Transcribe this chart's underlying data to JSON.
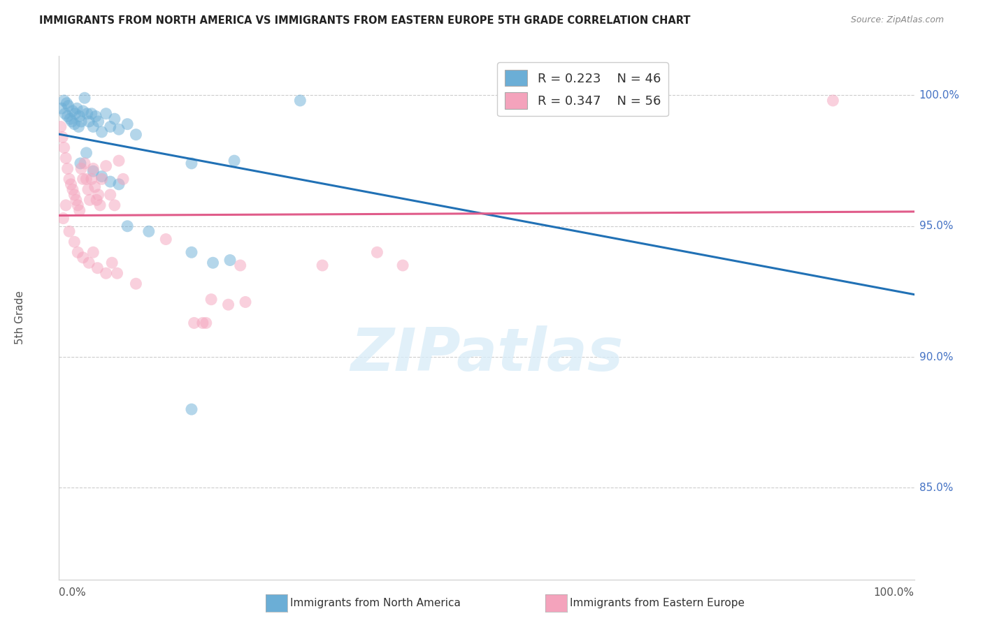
{
  "title": "IMMIGRANTS FROM NORTH AMERICA VS IMMIGRANTS FROM EASTERN EUROPE 5TH GRADE CORRELATION CHART",
  "source": "Source: ZipAtlas.com",
  "ylabel": "5th Grade",
  "ytick_values": [
    0.85,
    0.9,
    0.95,
    1.0
  ],
  "ytick_labels": [
    "85.0%",
    "90.0%",
    "95.0%",
    "100.0%"
  ],
  "xmin": 0.0,
  "xmax": 1.0,
  "ymin": 0.815,
  "ymax": 1.015,
  "legend_blue_r": "R = 0.223",
  "legend_blue_n": "N = 46",
  "legend_pink_r": "R = 0.347",
  "legend_pink_n": "N = 56",
  "watermark_text": "ZIPatlas",
  "blue_color": "#6baed6",
  "pink_color": "#f4a3bc",
  "blue_line_color": "#2171b5",
  "pink_line_color": "#e05c8a",
  "legend_label_blue": "Immigrants from North America",
  "legend_label_pink": "Immigrants from Eastern Europe",
  "blue_scatter_x": [
    0.003,
    0.006,
    0.007,
    0.009,
    0.01,
    0.011,
    0.013,
    0.015,
    0.016,
    0.018,
    0.019,
    0.021,
    0.023,
    0.024,
    0.026,
    0.028,
    0.03,
    0.033,
    0.035,
    0.038,
    0.04,
    0.043,
    0.046,
    0.05,
    0.055,
    0.06,
    0.065,
    0.07,
    0.08,
    0.09,
    0.025,
    0.032,
    0.04,
    0.05,
    0.06,
    0.07,
    0.155,
    0.205,
    0.08,
    0.105,
    0.155,
    0.18,
    0.2,
    0.155,
    0.282,
    0.565
  ],
  "blue_scatter_y": [
    0.995,
    0.998,
    0.993,
    0.997,
    0.992,
    0.996,
    0.991,
    0.99,
    0.994,
    0.989,
    0.993,
    0.995,
    0.988,
    0.992,
    0.99,
    0.994,
    0.999,
    0.993,
    0.99,
    0.993,
    0.988,
    0.992,
    0.99,
    0.986,
    0.993,
    0.988,
    0.991,
    0.987,
    0.989,
    0.985,
    0.974,
    0.978,
    0.971,
    0.969,
    0.967,
    0.966,
    0.974,
    0.975,
    0.95,
    0.948,
    0.94,
    0.936,
    0.937,
    0.88,
    0.998,
    0.998
  ],
  "pink_scatter_x": [
    0.002,
    0.004,
    0.006,
    0.008,
    0.01,
    0.012,
    0.014,
    0.016,
    0.018,
    0.02,
    0.022,
    0.024,
    0.026,
    0.028,
    0.03,
    0.032,
    0.034,
    0.036,
    0.038,
    0.04,
    0.042,
    0.044,
    0.046,
    0.048,
    0.05,
    0.055,
    0.06,
    0.065,
    0.07,
    0.075,
    0.005,
    0.008,
    0.012,
    0.018,
    0.022,
    0.028,
    0.035,
    0.04,
    0.045,
    0.055,
    0.062,
    0.068,
    0.09,
    0.125,
    0.178,
    0.198,
    0.218,
    0.212,
    0.308,
    0.158,
    0.168,
    0.172,
    0.372,
    0.402,
    0.565,
    0.905
  ],
  "pink_scatter_y": [
    0.988,
    0.984,
    0.98,
    0.976,
    0.972,
    0.968,
    0.966,
    0.964,
    0.962,
    0.96,
    0.958,
    0.956,
    0.972,
    0.968,
    0.974,
    0.968,
    0.964,
    0.96,
    0.968,
    0.972,
    0.965,
    0.96,
    0.962,
    0.958,
    0.968,
    0.973,
    0.962,
    0.958,
    0.975,
    0.968,
    0.953,
    0.958,
    0.948,
    0.944,
    0.94,
    0.938,
    0.936,
    0.94,
    0.934,
    0.932,
    0.936,
    0.932,
    0.928,
    0.945,
    0.922,
    0.92,
    0.921,
    0.935,
    0.935,
    0.913,
    0.913,
    0.913,
    0.94,
    0.935,
    0.998,
    0.998
  ]
}
